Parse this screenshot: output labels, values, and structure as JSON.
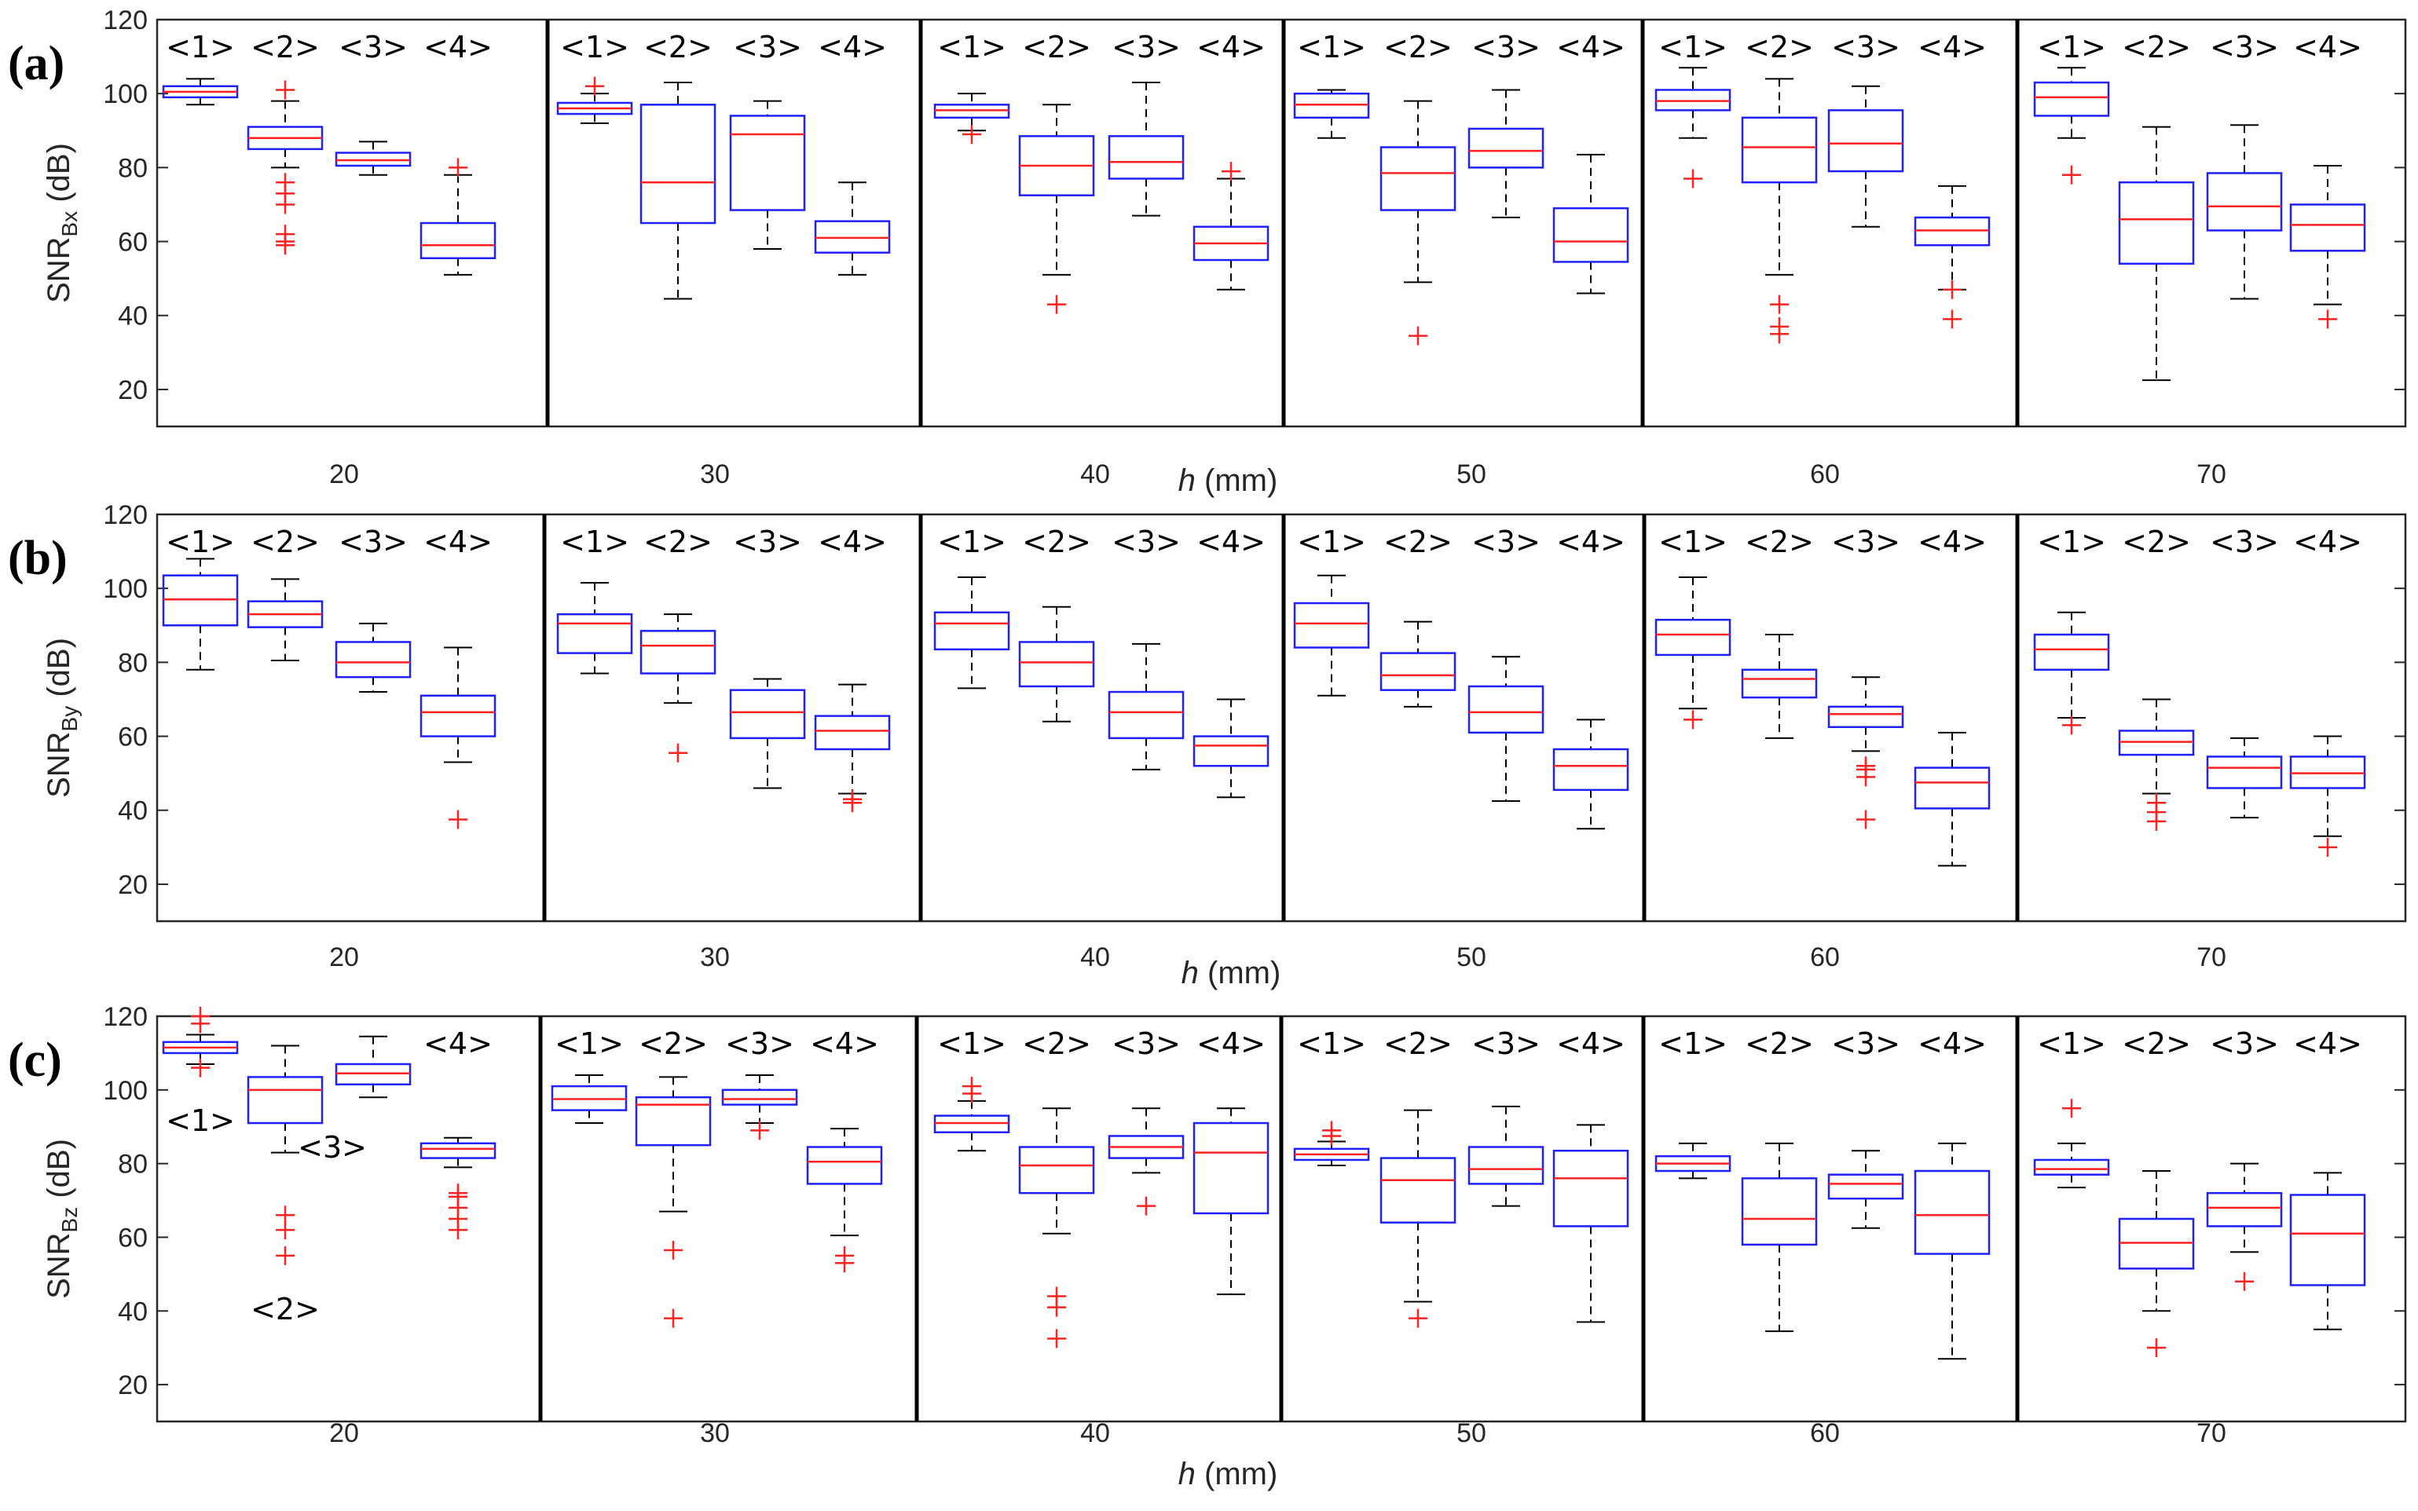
{
  "chart_data": [
    {
      "type": "boxplot",
      "panel_label": "(a)",
      "ylabel_main": "SNR",
      "ylabel_sub": "Bx",
      "ylabel_unit": " (dB)",
      "xlabel_var": "h",
      "xlabel_unit": " (mm)",
      "ylim": [
        10,
        120
      ],
      "yticks": [
        "20",
        "40",
        "60",
        "80",
        "100",
        "120"
      ],
      "categories": [
        "20",
        "30",
        "40",
        "50",
        "60",
        "70"
      ],
      "methods": [
        "<1>",
        "<2>",
        "<3>",
        "<4>"
      ],
      "groups": [
        {
          "h": "20",
          "boxes": [
            {
              "min": 97,
              "q1": 99,
              "median": 100.5,
              "q3": 102,
              "max": 104,
              "outliers": []
            },
            {
              "min": 80,
              "q1": 85,
              "median": 88,
              "q3": 91,
              "max": 98,
              "outliers": [
                101,
                76,
                73,
                70,
                62,
                60,
                59
              ]
            },
            {
              "min": 78,
              "q1": 80.5,
              "median": 82,
              "q3": 84,
              "max": 87,
              "outliers": []
            },
            {
              "min": 51,
              "q1": 55.5,
              "median": 59,
              "q3": 65,
              "max": 78,
              "outliers": [
                80
              ]
            }
          ]
        },
        {
          "h": "30",
          "boxes": [
            {
              "min": 92,
              "q1": 94.5,
              "median": 96,
              "q3": 97.5,
              "max": 100,
              "outliers": [
                102
              ]
            },
            {
              "min": 44.5,
              "q1": 65,
              "median": 76,
              "q3": 97,
              "max": 103,
              "outliers": []
            },
            {
              "min": 58,
              "q1": 68.5,
              "median": 89,
              "q3": 94,
              "max": 98,
              "outliers": []
            },
            {
              "min": 51,
              "q1": 57,
              "median": 61,
              "q3": 65.5,
              "max": 76,
              "outliers": []
            }
          ]
        },
        {
          "h": "40",
          "boxes": [
            {
              "min": 90,
              "q1": 93.5,
              "median": 95.5,
              "q3": 97,
              "max": 100,
              "outliers": [
                89
              ]
            },
            {
              "min": 51,
              "q1": 72.5,
              "median": 80.5,
              "q3": 88.5,
              "max": 97,
              "outliers": [
                43
              ]
            },
            {
              "min": 67,
              "q1": 77,
              "median": 81.5,
              "q3": 88.5,
              "max": 103,
              "outliers": []
            },
            {
              "min": 47,
              "q1": 55,
              "median": 59.5,
              "q3": 64,
              "max": 77,
              "outliers": [
                79
              ]
            }
          ]
        },
        {
          "h": "50",
          "boxes": [
            {
              "min": 88,
              "q1": 93.5,
              "median": 97,
              "q3": 100,
              "max": 101,
              "outliers": []
            },
            {
              "min": 49,
              "q1": 68.5,
              "median": 78.5,
              "q3": 85.5,
              "max": 98,
              "outliers": [
                34.5
              ]
            },
            {
              "min": 66.5,
              "q1": 80,
              "median": 84.5,
              "q3": 90.5,
              "max": 101,
              "outliers": []
            },
            {
              "min": 46,
              "q1": 54.5,
              "median": 60,
              "q3": 69,
              "max": 83.5,
              "outliers": []
            }
          ]
        },
        {
          "h": "60",
          "boxes": [
            {
              "min": 88,
              "q1": 95.5,
              "median": 98,
              "q3": 101,
              "max": 107,
              "outliers": [
                77
              ]
            },
            {
              "min": 51,
              "q1": 76,
              "median": 85.5,
              "q3": 93.5,
              "max": 104,
              "outliers": [
                43,
                37,
                35
              ]
            },
            {
              "min": 64,
              "q1": 79,
              "median": 86.5,
              "q3": 95.5,
              "max": 102,
              "outliers": []
            },
            {
              "min": 47,
              "q1": 59,
              "median": 63,
              "q3": 66.5,
              "max": 75,
              "outliers": [
                47,
                39
              ]
            }
          ]
        },
        {
          "h": "70",
          "boxes": [
            {
              "min": 88,
              "q1": 94,
              "median": 99,
              "q3": 103,
              "max": 107,
              "outliers": [
                78
              ]
            },
            {
              "min": 22.5,
              "q1": 54,
              "median": 66,
              "q3": 76,
              "max": 91,
              "outliers": []
            },
            {
              "min": 44.5,
              "q1": 63,
              "median": 69.5,
              "q3": 78.5,
              "max": 91.5,
              "outliers": []
            },
            {
              "min": 43,
              "q1": 57.5,
              "median": 64.5,
              "q3": 70,
              "max": 80.5,
              "outliers": [
                39
              ]
            }
          ]
        }
      ]
    },
    {
      "type": "boxplot",
      "panel_label": "(b)",
      "ylabel_main": "SNR",
      "ylabel_sub": "By",
      "ylabel_unit": " (dB)",
      "xlabel_var": "h",
      "xlabel_unit": " (mm)",
      "ylim": [
        10,
        120
      ],
      "yticks": [
        "20",
        "40",
        "60",
        "80",
        "100",
        "120"
      ],
      "categories": [
        "20",
        "30",
        "40",
        "50",
        "60",
        "70"
      ],
      "methods": [
        "<1>",
        "<2>",
        "<3>",
        "<4>"
      ],
      "groups": [
        {
          "h": "20",
          "boxes": [
            {
              "min": 78,
              "q1": 90,
              "median": 97,
              "q3": 103.5,
              "max": 108,
              "outliers": []
            },
            {
              "min": 80.5,
              "q1": 89.5,
              "median": 93,
              "q3": 96.5,
              "max": 102.5,
              "outliers": []
            },
            {
              "min": 72,
              "q1": 76,
              "median": 80,
              "q3": 85.5,
              "max": 90.5,
              "outliers": []
            },
            {
              "min": 53,
              "q1": 60,
              "median": 66.5,
              "q3": 71,
              "max": 84,
              "outliers": [
                37.5
              ]
            }
          ]
        },
        {
          "h": "30",
          "boxes": [
            {
              "min": 77,
              "q1": 82.5,
              "median": 90.5,
              "q3": 93,
              "max": 101.5,
              "outliers": []
            },
            {
              "min": 69,
              "q1": 77,
              "median": 84.5,
              "q3": 88.5,
              "max": 93,
              "outliers": [
                55.5
              ]
            },
            {
              "min": 46,
              "q1": 59.5,
              "median": 66.5,
              "q3": 72.5,
              "max": 75.5,
              "outliers": []
            },
            {
              "min": 44.5,
              "q1": 56.5,
              "median": 61.5,
              "q3": 65.5,
              "max": 74,
              "outliers": [
                43,
                42
              ]
            }
          ]
        },
        {
          "h": "40",
          "boxes": [
            {
              "min": 73,
              "q1": 83.5,
              "median": 90.5,
              "q3": 93.5,
              "max": 103,
              "outliers": []
            },
            {
              "min": 64,
              "q1": 73.5,
              "median": 80,
              "q3": 85.5,
              "max": 95,
              "outliers": []
            },
            {
              "min": 51,
              "q1": 59.5,
              "median": 66.5,
              "q3": 72,
              "max": 85,
              "outliers": []
            },
            {
              "min": 43.5,
              "q1": 52,
              "median": 57.5,
              "q3": 60,
              "max": 70,
              "outliers": []
            }
          ]
        },
        {
          "h": "50",
          "boxes": [
            {
              "min": 71,
              "q1": 84,
              "median": 90.5,
              "q3": 96,
              "max": 103.5,
              "outliers": []
            },
            {
              "min": 68,
              "q1": 72.5,
              "median": 76.5,
              "q3": 82.5,
              "max": 91,
              "outliers": []
            },
            {
              "min": 42.5,
              "q1": 61,
              "median": 66.5,
              "q3": 73.5,
              "max": 81.5,
              "outliers": []
            },
            {
              "min": 35,
              "q1": 45.5,
              "median": 52,
              "q3": 56.5,
              "max": 64.5,
              "outliers": []
            }
          ]
        },
        {
          "h": "60",
          "boxes": [
            {
              "min": 67.5,
              "q1": 82,
              "median": 87.5,
              "q3": 91.5,
              "max": 103,
              "outliers": [
                64.5
              ]
            },
            {
              "min": 59.5,
              "q1": 70.5,
              "median": 75.5,
              "q3": 78,
              "max": 87.5,
              "outliers": []
            },
            {
              "min": 56,
              "q1": 62.5,
              "median": 66,
              "q3": 68,
              "max": 76,
              "outliers": [
                52,
                51,
                49,
                37.5
              ]
            },
            {
              "min": 25,
              "q1": 40.5,
              "median": 47.5,
              "q3": 51.5,
              "max": 61,
              "outliers": []
            }
          ]
        },
        {
          "h": "70",
          "boxes": [
            {
              "min": 65,
              "q1": 78,
              "median": 83.5,
              "q3": 87.5,
              "max": 93.5,
              "outliers": [
                63
              ]
            },
            {
              "min": 44.5,
              "q1": 55,
              "median": 58.5,
              "q3": 61.5,
              "max": 70,
              "outliers": [
                42,
                39.5,
                37
              ]
            },
            {
              "min": 38,
              "q1": 46,
              "median": 51.5,
              "q3": 54.5,
              "max": 59.5,
              "outliers": []
            },
            {
              "min": 33,
              "q1": 46,
              "median": 50,
              "q3": 54.5,
              "max": 60,
              "outliers": [
                30
              ]
            }
          ]
        }
      ]
    },
    {
      "type": "boxplot",
      "panel_label": "(c)",
      "ylabel_main": "SNR",
      "ylabel_sub": "Bz",
      "ylabel_unit": " (dB)",
      "xlabel_var": "h",
      "xlabel_unit": " (mm)",
      "ylim": [
        10,
        120
      ],
      "yticks": [
        "20",
        "40",
        "60",
        "80",
        "100",
        "120"
      ],
      "categories": [
        "20",
        "30",
        "40",
        "50",
        "60",
        "70"
      ],
      "methods": [
        "<1>",
        "<2>",
        "<3>",
        "<4>"
      ],
      "group1_label_positions": [
        "below",
        "below-whisker",
        "below",
        "top"
      ],
      "groups": [
        {
          "h": "20",
          "boxes": [
            {
              "min": 107,
              "q1": 110,
              "median": 111.5,
              "q3": 113,
              "max": 115,
              "outliers": [
                120,
                118,
                106
              ]
            },
            {
              "min": 83,
              "q1": 91,
              "median": 100,
              "q3": 103.5,
              "max": 112,
              "outliers": [
                66,
                62,
                55
              ]
            },
            {
              "min": 98,
              "q1": 101.5,
              "median": 104.5,
              "q3": 107,
              "max": 114.5,
              "outliers": []
            },
            {
              "min": 79,
              "q1": 81.5,
              "median": 84,
              "q3": 85.5,
              "max": 87,
              "outliers": [
                72,
                71,
                68,
                65,
                62
              ]
            }
          ]
        },
        {
          "h": "30",
          "boxes": [
            {
              "min": 91,
              "q1": 94.5,
              "median": 97.5,
              "q3": 101,
              "max": 104,
              "outliers": []
            },
            {
              "min": 67,
              "q1": 85,
              "median": 96,
              "q3": 98,
              "max": 103.5,
              "outliers": [
                56.5,
                38
              ]
            },
            {
              "min": 91,
              "q1": 96,
              "median": 97.5,
              "q3": 100,
              "max": 104,
              "outliers": [
                89
              ]
            },
            {
              "min": 60.5,
              "q1": 74.5,
              "median": 80.5,
              "q3": 84.5,
              "max": 89.5,
              "outliers": [
                55,
                53
              ]
            }
          ]
        },
        {
          "h": "40",
          "boxes": [
            {
              "min": 83.5,
              "q1": 88.5,
              "median": 91,
              "q3": 93,
              "max": 97,
              "outliers": [
                101,
                99
              ]
            },
            {
              "min": 61,
              "q1": 72,
              "median": 79.5,
              "q3": 84.5,
              "max": 95,
              "outliers": [
                44,
                41,
                32.5
              ]
            },
            {
              "min": 77.5,
              "q1": 81.5,
              "median": 84.5,
              "q3": 87.5,
              "max": 95,
              "outliers": [
                68.5
              ]
            },
            {
              "min": 44.5,
              "q1": 66.5,
              "median": 83,
              "q3": 91,
              "max": 95,
              "outliers": []
            }
          ]
        },
        {
          "h": "50",
          "boxes": [
            {
              "min": 79.5,
              "q1": 81,
              "median": 82.5,
              "q3": 84,
              "max": 86,
              "outliers": [
                89,
                87.5
              ]
            },
            {
              "min": 42.5,
              "q1": 64,
              "median": 75.5,
              "q3": 81.5,
              "max": 94.5,
              "outliers": [
                38
              ]
            },
            {
              "min": 68.5,
              "q1": 74.5,
              "median": 78.5,
              "q3": 84.5,
              "max": 95.5,
              "outliers": []
            },
            {
              "min": 37,
              "q1": 63,
              "median": 76,
              "q3": 83.5,
              "max": 90.5,
              "outliers": []
            }
          ]
        },
        {
          "h": "60",
          "boxes": [
            {
              "min": 76,
              "q1": 78,
              "median": 80,
              "q3": 82,
              "max": 85.5,
              "outliers": []
            },
            {
              "min": 34.5,
              "q1": 58,
              "median": 65,
              "q3": 76,
              "max": 85.5,
              "outliers": []
            },
            {
              "min": 62.5,
              "q1": 70.5,
              "median": 74.5,
              "q3": 77,
              "max": 83.5,
              "outliers": []
            },
            {
              "min": 27,
              "q1": 55.5,
              "median": 66,
              "q3": 78,
              "max": 85.5,
              "outliers": []
            }
          ]
        },
        {
          "h": "70",
          "boxes": [
            {
              "min": 73.5,
              "q1": 77,
              "median": 78.5,
              "q3": 81,
              "max": 85.5,
              "outliers": [
                95
              ]
            },
            {
              "min": 40,
              "q1": 51.5,
              "median": 58.5,
              "q3": 65,
              "max": 78,
              "outliers": [
                30
              ]
            },
            {
              "min": 56,
              "q1": 63,
              "median": 68,
              "q3": 72,
              "max": 80,
              "outliers": [
                48
              ]
            },
            {
              "min": 35,
              "q1": 47,
              "median": 61,
              "q3": 71.5,
              "max": 77.5,
              "outliers": []
            }
          ]
        }
      ]
    }
  ]
}
